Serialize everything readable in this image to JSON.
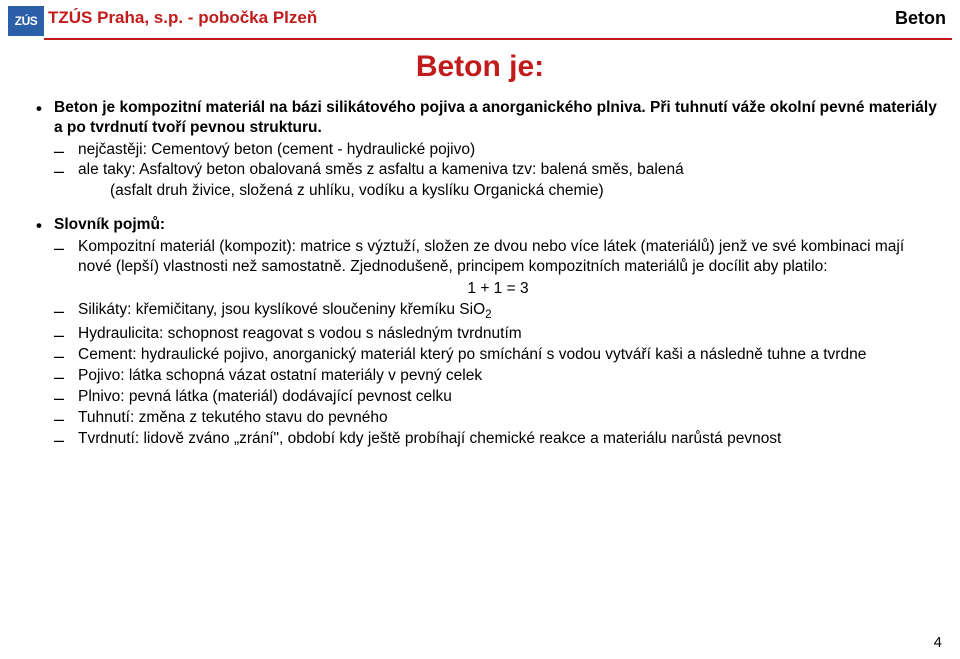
{
  "header": {
    "logo_text": "ZÚS",
    "org": "TZÚS Praha, s.p. - pobočka Plzeň",
    "right": "Beton"
  },
  "title": "Beton je:",
  "intro": {
    "line1_bold": "Beton je kompozitní materiál na bázi silikátového pojiva a anorganického plniva. Při tuhnutí váže okolní pevné materiály a po tvrdnutí tvoří pevnou strukturu.",
    "sub1": "nejčastěji: Cementový beton (cement - hydraulické pojivo)",
    "sub2": "ale taky: Asfaltový beton obalovaná směs z asfaltu a kameniva tzv: balená směs, balená",
    "sub2_cont": "(asfalt druh živice, složená z uhlíku, vodíku a kyslíku Organická chemie)"
  },
  "slovnik": {
    "heading": "Slovník pojmů:",
    "items": [
      "Kompozitní materiál (kompozit): matrice s výztuží, složen ze dvou nebo více látek (materiálů) jenž ve své kombinaci mají nové (lepší) vlastnosti než samostatně. Zjednodušeně, principem kompozitních materiálů je docílit aby platilo:",
      "Silikáty: křemičitany, jsou kyslíkové sloučeniny křemíku SiO",
      "Hydraulicita: schopnost reagovat s vodou s následným tvrdnutím",
      "Cement: hydraulické pojivo, anorganický materiál který po smíchání s vodou vytváří kaši a následně tuhne a tvrdne",
      "Pojivo: látka schopná vázat ostatní materiály v pevný celek",
      "Plnivo: pevná látka (materiál) dodávající pevnost celku",
      "Tuhnutí: změna z tekutého stavu do pevného",
      "Tvrdnutí: lidově zváno „zrání\", období kdy ještě probíhají chemické reakce a materiálu narůstá pevnost"
    ],
    "formula": "1 + 1 = 3",
    "sio_sub": "2"
  },
  "page": "4",
  "colors": {
    "accent_red": "#c11b1b",
    "logo_blue": "#2b5fa8",
    "text": "#000000",
    "bg": "#ffffff"
  }
}
